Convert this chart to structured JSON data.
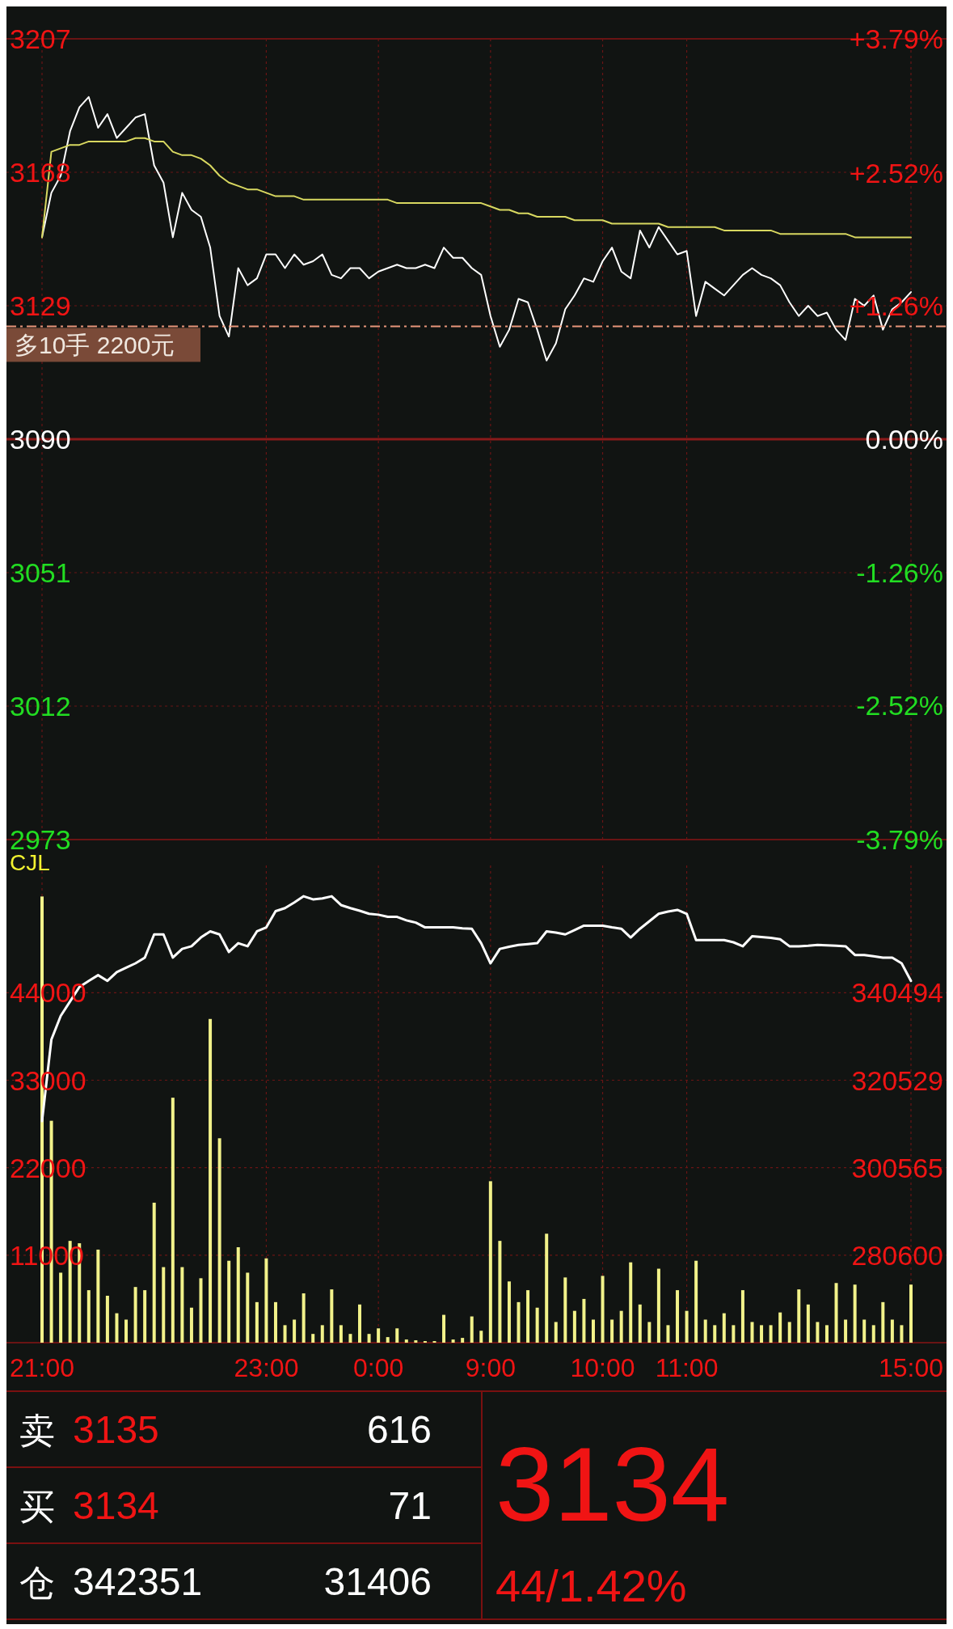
{
  "chart_data": [
    {
      "type": "line",
      "tick_labels": "y",
      "grid": true,
      "categories": [
        null,
        null,
        null,
        null,
        null,
        null,
        null,
        null,
        null,
        null,
        null,
        null,
        null,
        null,
        null,
        null,
        null,
        null,
        null,
        null,
        null,
        null,
        null,
        null,
        null,
        null,
        null,
        null,
        null,
        null,
        null,
        null,
        null,
        null,
        null,
        null,
        null,
        null,
        null,
        null,
        null,
        null,
        null,
        null,
        null,
        null,
        null,
        null,
        null,
        null,
        null,
        null,
        null,
        null,
        null,
        null,
        null,
        null,
        null,
        null,
        null,
        null,
        null,
        null,
        null,
        null,
        null,
        null,
        null,
        null,
        null,
        null,
        null,
        null,
        null,
        null,
        null,
        null,
        null,
        null,
        null,
        null,
        null,
        null,
        null,
        null,
        null,
        null,
        null,
        null,
        null,
        null,
        null,
        null
      ],
      "ylim": [
        2973,
        3207
      ],
      "yticks": [
        3207,
        3168,
        3129,
        3090,
        3051,
        3012,
        2973
      ],
      "y2lim": [
        -3.79,
        3.79
      ],
      "y2ticks": [
        {
          "value": 3.79,
          "label": "+3.79%"
        },
        {
          "value": 2.52,
          "label": "+2.52%"
        },
        {
          "value": 1.26,
          "label": "+1.26%"
        },
        {
          "value": 0,
          "label": "0.00%"
        },
        {
          "value": -1.26,
          "label": "-1.26%"
        },
        {
          "value": -2.52,
          "label": "-2.52%"
        },
        {
          "value": -3.79,
          "label": "-3.79%"
        }
      ],
      "ref_lines": [
        {
          "axis": "y",
          "value": 3123,
          "label": "多10手 2200元",
          "color": "#e8957a",
          "line_style": "dashed"
        },
        {
          "axis": "y",
          "value": 3090,
          "color": "#8a1a1a",
          "line_style": "solid"
        }
      ],
      "series": [
        {
          "color": "#ffffff",
          "values": [
            3149,
            3162,
            3167,
            3180,
            3187,
            3190,
            3181,
            3185,
            3178,
            3181,
            3184,
            3185,
            3170,
            3165,
            3149,
            3162,
            3157,
            3155,
            3146,
            3126,
            3120,
            3140,
            3135,
            3137,
            3144,
            3144,
            3140,
            3144,
            3141,
            3142,
            3144,
            3138,
            3137,
            3140,
            3140,
            3137,
            3139,
            3140,
            3141,
            3140,
            3140,
            3141,
            3140,
            3146,
            3143,
            3143,
            3140,
            3138,
            3126,
            3117,
            3122,
            3131,
            3130,
            3122,
            3113,
            3118,
            3128,
            3132,
            3137,
            3136,
            3142,
            3146,
            3139,
            3137,
            3151,
            3146,
            3152,
            3148,
            3144,
            3145,
            3126,
            3136,
            3134,
            3132,
            3135,
            3138,
            3140,
            3138,
            3137,
            3135,
            3130,
            3126,
            3129,
            3126,
            3127,
            3122,
            3119,
            3131,
            3129,
            3132,
            3122,
            3128,
            3130,
            3133
          ]
        },
        {
          "color": "#d8d860",
          "values": [
            3149,
            3174,
            3175,
            3176,
            3176,
            3177,
            3177,
            3177,
            3177,
            3177,
            3178,
            3178,
            3177,
            3177,
            3174,
            3173,
            3173,
            3172,
            3170,
            3167,
            3165,
            3164,
            3163,
            3163,
            3162,
            3161,
            3161,
            3161,
            3160,
            3160,
            3160,
            3160,
            3160,
            3160,
            3160,
            3160,
            3160,
            3160,
            3159,
            3159,
            3159,
            3159,
            3159,
            3159,
            3159,
            3159,
            3159,
            3159,
            3158,
            3157,
            3157,
            3156,
            3156,
            3155,
            3155,
            3155,
            3155,
            3154,
            3154,
            3154,
            3154,
            3153,
            3153,
            3153,
            3153,
            3153,
            3153,
            3152,
            3152,
            3152,
            3152,
            3152,
            3152,
            3151,
            3151,
            3151,
            3151,
            3151,
            3151,
            3150,
            3150,
            3150,
            3150,
            3150,
            3150,
            3150,
            3150,
            3149,
            3149,
            3149,
            3149,
            3149,
            3149,
            3149
          ]
        }
      ]
    },
    {
      "type": "bar",
      "title": "CJL",
      "grid": true,
      "categories": [
        "21:00",
        null,
        null,
        null,
        null,
        null,
        null,
        null,
        null,
        null,
        null,
        null,
        null,
        null,
        null,
        null,
        null,
        null,
        null,
        null,
        null,
        null,
        null,
        null,
        "23:00",
        null,
        null,
        null,
        null,
        null,
        null,
        null,
        null,
        null,
        null,
        null,
        "0:00",
        null,
        null,
        null,
        null,
        null,
        null,
        null,
        null,
        null,
        null,
        null,
        "9:00",
        null,
        null,
        null,
        null,
        null,
        null,
        null,
        null,
        null,
        null,
        null,
        "10:00",
        null,
        null,
        null,
        null,
        null,
        null,
        null,
        null,
        "11:00",
        null,
        null,
        null,
        null,
        null,
        null,
        null,
        null,
        null,
        null,
        null,
        null,
        null,
        null,
        null,
        null,
        null,
        null,
        null,
        null,
        null,
        null,
        null,
        "15:00"
      ],
      "ylim": [
        0,
        60000
      ],
      "yticks": [
        11000,
        22000,
        33000,
        44000
      ],
      "y2lim": [
        260635,
        369535
      ],
      "y2ticks": [
        280600,
        300565,
        320529,
        340494
      ],
      "series": [
        {
          "type": "bar",
          "color": "#f2f28a",
          "values": [
            56100,
            27900,
            8800,
            12800,
            12500,
            6600,
            11700,
            5900,
            3700,
            2900,
            7000,
            6600,
            17600,
            9500,
            30800,
            9500,
            4400,
            8100,
            40700,
            25700,
            10300,
            12000,
            8800,
            5100,
            10600,
            5100,
            2200,
            2900,
            6200,
            1100,
            2200,
            6700,
            2200,
            1100,
            4800,
            1100,
            1800,
            700,
            1800,
            400,
            300,
            200,
            200,
            3500,
            400,
            600,
            3300,
            1500,
            20300,
            12800,
            7700,
            5100,
            6600,
            4400,
            13700,
            2600,
            8200,
            4000,
            5500,
            2900,
            8400,
            2900,
            4000,
            10100,
            4800,
            2600,
            9300,
            2200,
            6600,
            4000,
            10300,
            2900,
            2200,
            3700,
            2200,
            6600,
            2600,
            2200,
            2200,
            3800,
            2600,
            6700,
            4800,
            2600,
            2200,
            7500,
            2900,
            7300,
            2900,
            2200,
            5100,
            2900,
            2200,
            7300
          ]
        },
        {
          "type": "line",
          "axis": "y2",
          "color": "#ffffff",
          "values": [
            311200,
            329800,
            335200,
            338500,
            341800,
            343200,
            344500,
            343200,
            345200,
            346200,
            347200,
            348500,
            353800,
            353800,
            348500,
            350500,
            351100,
            353100,
            354500,
            353800,
            349800,
            351800,
            351100,
            354500,
            355400,
            359100,
            359800,
            361100,
            362500,
            361800,
            362000,
            362500,
            360500,
            359800,
            359200,
            358500,
            358300,
            357800,
            357800,
            357000,
            356500,
            355400,
            355400,
            355400,
            355400,
            355200,
            355100,
            351800,
            347200,
            350500,
            351000,
            351400,
            351600,
            351800,
            354500,
            354200,
            353800,
            354800,
            355800,
            355800,
            355800,
            355400,
            355100,
            353100,
            355100,
            356800,
            358500,
            359000,
            359400,
            358500,
            352500,
            352500,
            352500,
            352500,
            352000,
            351100,
            353400,
            353200,
            353000,
            352700,
            351100,
            351100,
            351200,
            351400,
            351300,
            351200,
            351100,
            349100,
            349100,
            348800,
            348500,
            348500,
            347200,
            343200
          ]
        }
      ]
    },
    {
      "type": "other",
      "annotations": [
        "卖",
        "3135",
        "616",
        "买",
        "3134",
        "71",
        "仓",
        "342351",
        "31406",
        "3134",
        "44/1.42%"
      ]
    }
  ]
}
